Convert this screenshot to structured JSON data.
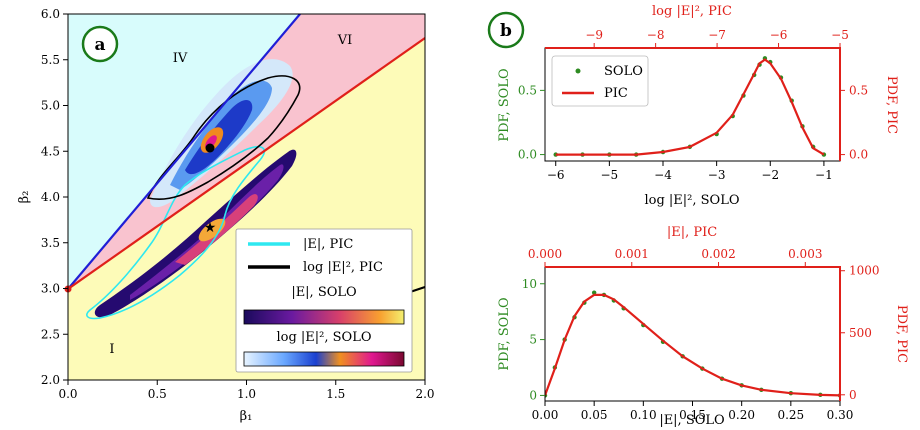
{
  "chart_data": [
    {
      "type": "scatter",
      "panel_label": "a",
      "xlabel": "β₁",
      "ylabel": "β₂",
      "xlim": [
        0.0,
        2.0
      ],
      "ylim": [
        2.0,
        6.0
      ],
      "xticks": [
        "0.0",
        "0.5",
        "1.0",
        "1.5",
        "2.0"
      ],
      "yticks": [
        "2.0",
        "2.5",
        "3.0",
        "3.5",
        "4.0",
        "4.5",
        "5.0",
        "5.5",
        "6.0"
      ],
      "region_labels": [
        "IV",
        "VI",
        "I"
      ],
      "boundary_lines": [
        {
          "name": "blue",
          "color": "#1f1fd6",
          "from": [
            0.0,
            3.0
          ],
          "to": [
            1.3,
            6.0
          ]
        },
        {
          "name": "red",
          "color": "#e0201a",
          "from": [
            0.0,
            3.0
          ],
          "to": [
            2.0,
            5.78
          ]
        }
      ],
      "markers": [
        {
          "name": "circle",
          "x": 0.8,
          "y": 4.5
        },
        {
          "name": "star",
          "x": 0.8,
          "y": 3.7
        }
      ],
      "legend": [
        {
          "label": "|E|, PIC",
          "color": "#2ee8f0"
        },
        {
          "label": "log |E|², PIC",
          "color": "#000000"
        },
        {
          "label": "|E|, SOLO"
        },
        {
          "label": "log |E|², SOLO"
        }
      ]
    },
    {
      "type": "scatter",
      "panel_label": "b",
      "xlabel": "log |E|², SOLO",
      "top_xlabel": "log |E|², PIC",
      "ylabel": "PDF, SOLO",
      "right_ylabel": "PDF, PIC",
      "xlim": [
        -6.2,
        -0.7
      ],
      "top_xlim": [
        -9.8,
        -5.0
      ],
      "ylim": [
        -0.05,
        0.83
      ],
      "right_ylim": [
        -0.05,
        0.83
      ],
      "xticks": [
        "−6",
        "−5",
        "−4",
        "−3",
        "−2",
        "−1"
      ],
      "top_xticks": [
        "−9",
        "−8",
        "−7",
        "−6",
        "−5"
      ],
      "yticks": [
        "0.0",
        "0.5"
      ],
      "right_yticks": [
        "0.0",
        "0.5"
      ],
      "series": [
        {
          "name": "SOLO",
          "color": "#2e8b22",
          "style": "dots",
          "x": [
            -6.0,
            -5.5,
            -5.0,
            -4.5,
            -4.0,
            -3.5,
            -3.0,
            -2.7,
            -2.5,
            -2.3,
            -2.2,
            -2.1,
            -2.0,
            -1.8,
            -1.6,
            -1.4,
            -1.2,
            -1.0
          ],
          "values": [
            0.0,
            0.0,
            0.0,
            0.0,
            0.02,
            0.06,
            0.16,
            0.3,
            0.46,
            0.62,
            0.7,
            0.75,
            0.72,
            0.6,
            0.42,
            0.22,
            0.06,
            0.0
          ]
        },
        {
          "name": "PIC",
          "color": "#e0201a",
          "style": "line",
          "x": [
            -6.0,
            -5.5,
            -5.0,
            -4.5,
            -4.0,
            -3.5,
            -3.0,
            -2.7,
            -2.5,
            -2.3,
            -2.2,
            -2.1,
            -2.0,
            -1.8,
            -1.6,
            -1.4,
            -1.2,
            -1.0
          ],
          "values": [
            0.0,
            0.0,
            0.0,
            0.0,
            0.02,
            0.06,
            0.17,
            0.31,
            0.47,
            0.63,
            0.71,
            0.74,
            0.71,
            0.59,
            0.41,
            0.21,
            0.05,
            0.0
          ]
        }
      ],
      "legend": [
        {
          "label": "SOLO",
          "color": "#2e8b22"
        },
        {
          "label": "PIC",
          "color": "#e0201a"
        }
      ]
    },
    {
      "type": "scatter",
      "xlabel": "|E|, SOLO",
      "top_xlabel": "|E|, PIC",
      "ylabel": "PDF, SOLO",
      "right_ylabel": "PDF, PIC",
      "xlim": [
        0.0,
        0.3
      ],
      "top_xlim": [
        0.0,
        0.0034
      ],
      "ylim": [
        -0.5,
        11.5
      ],
      "right_ylim": [
        -50,
        1030
      ],
      "xticks": [
        "0.00",
        "0.05",
        "0.10",
        "0.15",
        "0.20",
        "0.25",
        "0.30"
      ],
      "top_xticks": [
        "0.000",
        "0.001",
        "0.002",
        "0.003"
      ],
      "yticks": [
        "0",
        "5",
        "10"
      ],
      "right_yticks": [
        "0",
        "500",
        "1000"
      ],
      "series": [
        {
          "name": "SOLO",
          "color": "#2e8b22",
          "style": "dots",
          "x": [
            0.0,
            0.01,
            0.02,
            0.03,
            0.04,
            0.05,
            0.06,
            0.07,
            0.08,
            0.1,
            0.12,
            0.14,
            0.16,
            0.18,
            0.2,
            0.22,
            0.25,
            0.28,
            0.3
          ],
          "values": [
            0.0,
            2.5,
            5.0,
            7.0,
            8.3,
            9.2,
            9.0,
            8.5,
            7.8,
            6.3,
            4.8,
            3.5,
            2.4,
            1.5,
            0.9,
            0.5,
            0.2,
            0.05,
            0.0
          ]
        },
        {
          "name": "PIC",
          "color": "#e0201a",
          "style": "line",
          "x": [
            0.0,
            0.01,
            0.02,
            0.03,
            0.04,
            0.05,
            0.06,
            0.07,
            0.08,
            0.1,
            0.12,
            0.14,
            0.16,
            0.18,
            0.2,
            0.22,
            0.25,
            0.28,
            0.3
          ],
          "values": [
            0.0,
            2.4,
            5.0,
            7.1,
            8.4,
            9.0,
            9.0,
            8.6,
            7.9,
            6.4,
            4.9,
            3.5,
            2.4,
            1.5,
            0.9,
            0.5,
            0.2,
            0.05,
            0.0
          ]
        }
      ]
    }
  ]
}
